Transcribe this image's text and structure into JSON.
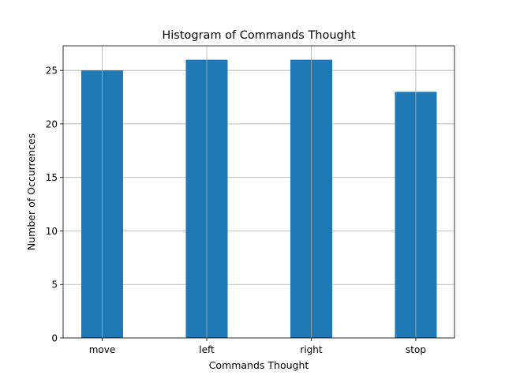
{
  "chart_data": {
    "type": "bar",
    "title": "Histogram of Commands Thought",
    "xlabel": "Commands Thought",
    "ylabel": "Number of Occurrences",
    "categories": [
      "move",
      "left",
      "right",
      "stop"
    ],
    "values": [
      25,
      26,
      26,
      23
    ],
    "ylim": [
      0,
      27.3
    ],
    "yticks": [
      0,
      5,
      10,
      15,
      20,
      25
    ],
    "grid": true,
    "legend": "none",
    "bar_color": "#1f77b4"
  }
}
